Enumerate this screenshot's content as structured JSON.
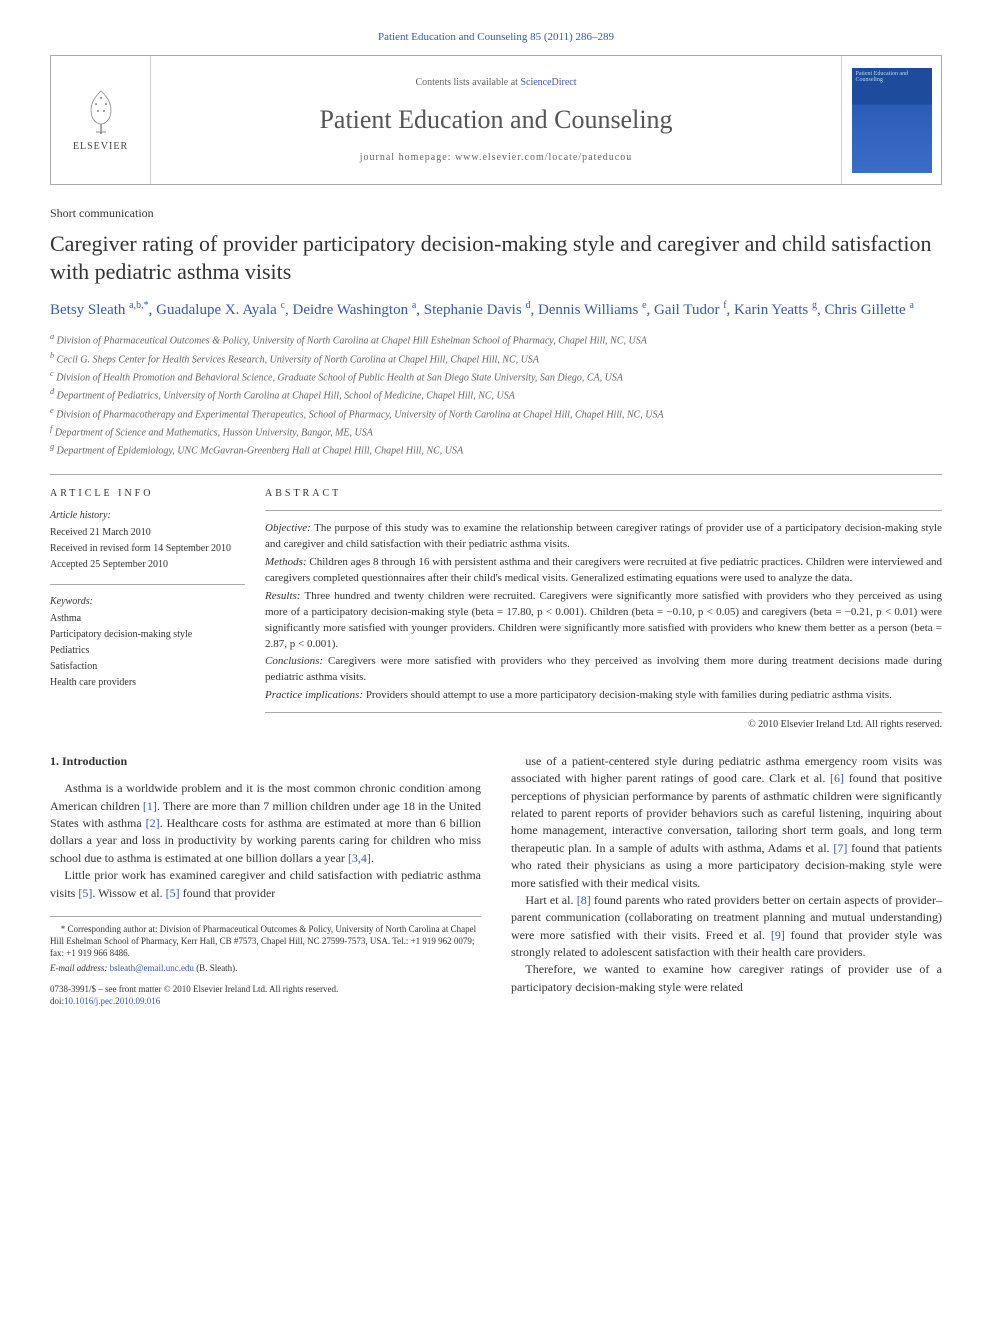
{
  "journal_header": "Patient Education and Counseling 85 (2011) 286–289",
  "masthead": {
    "publisher": "ELSEVIER",
    "contents_prefix": "Contents lists available at ",
    "contents_link": "ScienceDirect",
    "journal_name": "Patient Education and Counseling",
    "homepage_label": "journal homepage: www.elsevier.com/locate/pateducou",
    "cover_title": "Patient Education and Counseling"
  },
  "article": {
    "type": "Short communication",
    "title": "Caregiver rating of provider participatory decision-making style and caregiver and child satisfaction with pediatric asthma visits",
    "authors_html": "Betsy Sleath <sup>a,b,*</sup>, Guadalupe X. Ayala <sup>c</sup>, Deidre Washington <sup>a</sup>, Stephanie Davis <sup>d</sup>, Dennis Williams <sup>e</sup>, Gail Tudor <sup>f</sup>, Karin Yeatts <sup>g</sup>, Chris Gillette <sup>a</sup>",
    "affiliations": [
      "a Division of Pharmaceutical Outcomes & Policy, University of North Carolina at Chapel Hill Eshelman School of Pharmacy, Chapel Hill, NC, USA",
      "b Cecil G. Sheps Center for Health Services Research, University of North Carolina at Chapel Hill, Chapel Hill, NC, USA",
      "c Division of Health Promotion and Behavioral Science, Graduate School of Public Health at San Diego State University, San Diego, CA, USA",
      "d Department of Pediatrics, University of North Carolina at Chapel Hill, School of Medicine, Chapel Hill, NC, USA",
      "e Division of Pharmacotherapy and Experimental Therapeutics, School of Pharmacy, University of North Carolina at Chapel Hill, Chapel Hill, NC, USA",
      "f Department of Science and Mathematics, Husson University, Bangor, ME, USA",
      "g Department of Epidemiology, UNC McGavran-Greenberg Hall at Chapel Hill, Chapel Hill, NC, USA"
    ]
  },
  "article_info": {
    "heading": "ARTICLE INFO",
    "history_label": "Article history:",
    "history": [
      "Received 21 March 2010",
      "Received in revised form 14 September 2010",
      "Accepted 25 September 2010"
    ],
    "keywords_label": "Keywords:",
    "keywords": [
      "Asthma",
      "Participatory decision-making style",
      "Pediatrics",
      "Satisfaction",
      "Health care providers"
    ]
  },
  "abstract": {
    "heading": "ABSTRACT",
    "sections": [
      {
        "label": "Objective:",
        "text": "The purpose of this study was to examine the relationship between caregiver ratings of provider use of a participatory decision-making style and caregiver and child satisfaction with their pediatric asthma visits."
      },
      {
        "label": "Methods:",
        "text": "Children ages 8 through 16 with persistent asthma and their caregivers were recruited at five pediatric practices. Children were interviewed and caregivers completed questionnaires after their child's medical visits. Generalized estimating equations were used to analyze the data."
      },
      {
        "label": "Results:",
        "text": "Three hundred and twenty children were recruited. Caregivers were significantly more satisfied with providers who they perceived as using more of a participatory decision-making style (beta = 17.80, p < 0.001). Children (beta = −0.10, p < 0.05) and caregivers (beta = −0.21, p < 0.01) were significantly more satisfied with younger providers. Children were significantly more satisfied with providers who knew them better as a person (beta = 2.87, p < 0.001)."
      },
      {
        "label": "Conclusions:",
        "text": "Caregivers were more satisfied with providers who they perceived as involving them more during treatment decisions made during pediatric asthma visits."
      },
      {
        "label": "Practice implications:",
        "text": "Providers should attempt to use a more participatory decision-making style with families during pediatric asthma visits."
      }
    ],
    "copyright": "© 2010 Elsevier Ireland Ltd. All rights reserved."
  },
  "body": {
    "section_num": "1.",
    "section_title": "Introduction",
    "left": [
      "Asthma is a worldwide problem and it is the most common chronic condition among American children [1]. There are more than 7 million children under age 18 in the United States with asthma [2]. Healthcare costs for asthma are estimated at more than 6 billion dollars a year and loss in productivity by working parents caring for children who miss school due to asthma is estimated at one billion dollars a year [3,4].",
      "Little prior work has examined caregiver and child satisfaction with pediatric asthma visits [5]. Wissow et al. [5] found that provider"
    ],
    "right": [
      "use of a patient-centered style during pediatric asthma emergency room visits was associated with higher parent ratings of good care. Clark et al. [6] found that positive perceptions of physician performance by parents of asthmatic children were significantly related to parent reports of provider behaviors such as careful listening, inquiring about home management, interactive conversation, tailoring short term goals, and long term therapeutic plan. In a sample of adults with asthma, Adams et al. [7] found that patients who rated their physicians as using a more participatory decision-making style were more satisfied with their medical visits.",
      "Hart et al. [8] found parents who rated providers better on certain aspects of provider–parent communication (collaborating on treatment planning and mutual understanding) were more satisfied with their visits. Freed et al. [9] found that provider style was strongly related to adolescent satisfaction with their health care providers.",
      "Therefore, we wanted to examine how caregiver ratings of provider use of a participatory decision-making style were related"
    ]
  },
  "footnote": {
    "corresponding": "* Corresponding author at: Division of Pharmaceutical Outcomes & Policy, University of North Carolina at Chapel Hill Eshelman School of Pharmacy, Kerr Hall, CB #7573, Chapel Hill, NC 27599-7573, USA. Tel.: +1 919 962 0079; fax: +1 919 966 8486.",
    "email_label": "E-mail address:",
    "email": "bsleath@email.unc.edu",
    "email_suffix": "(B. Sleath)."
  },
  "doi": {
    "line1": "0738-3991/$ – see front matter © 2010 Elsevier Ireland Ltd. All rights reserved.",
    "line2_prefix": "doi:",
    "doi": "10.1016/j.pec.2010.09.016"
  },
  "colors": {
    "link": "#3a5aa8",
    "text": "#333333",
    "border": "#aaaaaa",
    "muted": "#666666"
  }
}
